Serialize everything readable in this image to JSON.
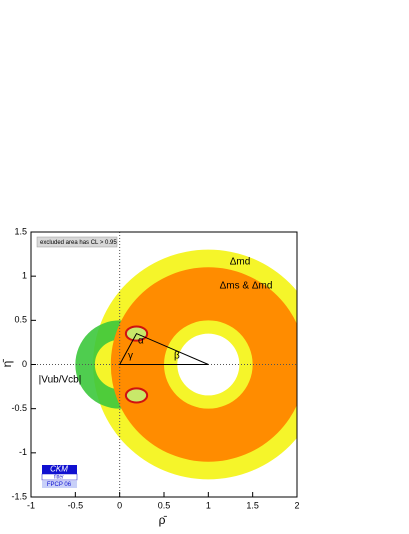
{
  "chart_data": {
    "type": "ckm",
    "xlabel": "ρ̄",
    "ylabel": "η̄",
    "xlim": [
      -1,
      2
    ],
    "ylim": [
      -1.5,
      1.5
    ],
    "xticks": [
      -1,
      -0.5,
      0,
      0.5,
      1,
      1.5,
      2
    ],
    "yticks": [
      -1.5,
      -1,
      -0.5,
      0,
      0.5,
      1,
      1.5
    ],
    "legend_note": "excluded area has CL > 0.95",
    "rings": [
      {
        "name": "Δmd",
        "color": "#f5f52a",
        "cx": 1,
        "cy": 0,
        "r_inner": 0.35,
        "r_outer": 1.3
      },
      {
        "name": "Δms & Δmd",
        "color": "#ff8c00",
        "cx": 1,
        "cy": 0,
        "r_inner": 0.5,
        "r_outer": 1.1
      },
      {
        "name": "|Vub/Vcb|",
        "color": "#3cc83c",
        "cx": 0,
        "cy": 0,
        "r_inner": 0.28,
        "r_outer": 0.5
      }
    ],
    "regions": [
      {
        "x": 0.19,
        "y": 0.35,
        "rx": 0.12,
        "ry": 0.08,
        "color": "#d01010"
      },
      {
        "x": 0.19,
        "y": -0.35,
        "rx": 0.12,
        "ry": 0.08,
        "color": "#d01010"
      }
    ],
    "triangle": {
      "apex": [
        0.19,
        0.35
      ],
      "base": [
        0,
        1
      ]
    },
    "angles": [
      "α",
      "β",
      "γ"
    ],
    "logo": {
      "title": "CKM",
      "sub": "fitter",
      "tag": "FPCP 06"
    }
  }
}
